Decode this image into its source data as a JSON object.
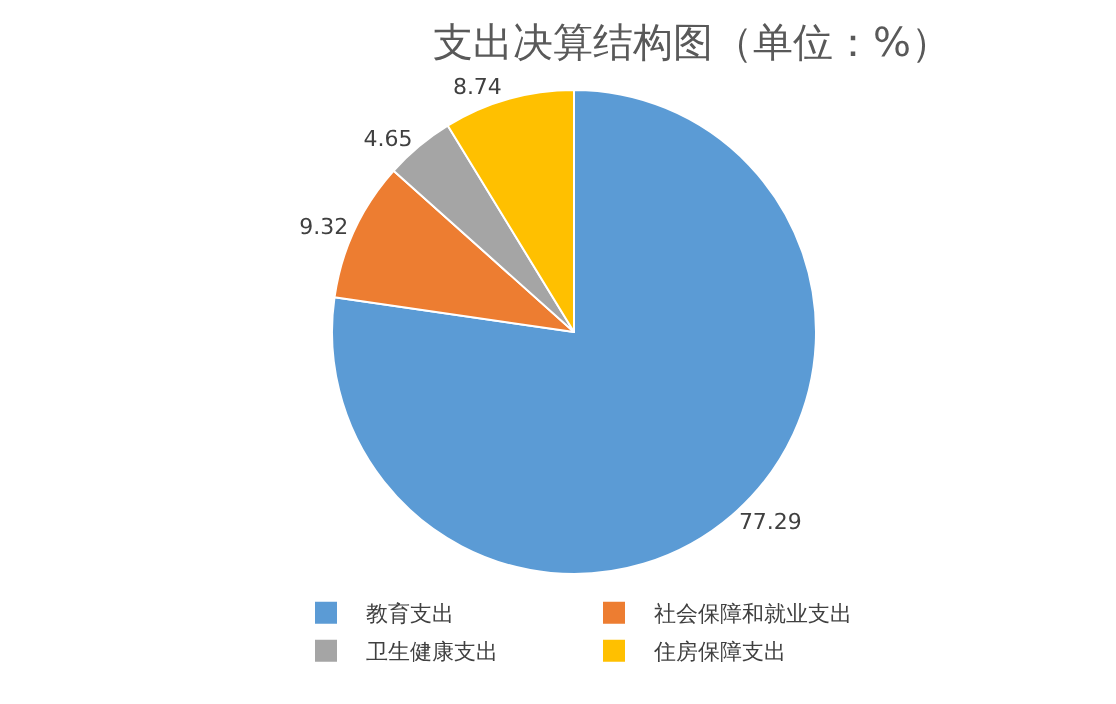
{
  "chart_data": {
    "type": "pie",
    "title": "支出决算结构图（单位：%）",
    "categories": [
      "教育支出",
      "社会保障和就业支出",
      "卫生健康支出",
      "住房保障支出"
    ],
    "values": [
      77.29,
      9.32,
      4.65,
      8.74
    ],
    "colors": [
      "#5b9bd5",
      "#ed7d31",
      "#a5a5a5",
      "#ffc000"
    ],
    "data_labels": true,
    "legend": "bottom"
  }
}
